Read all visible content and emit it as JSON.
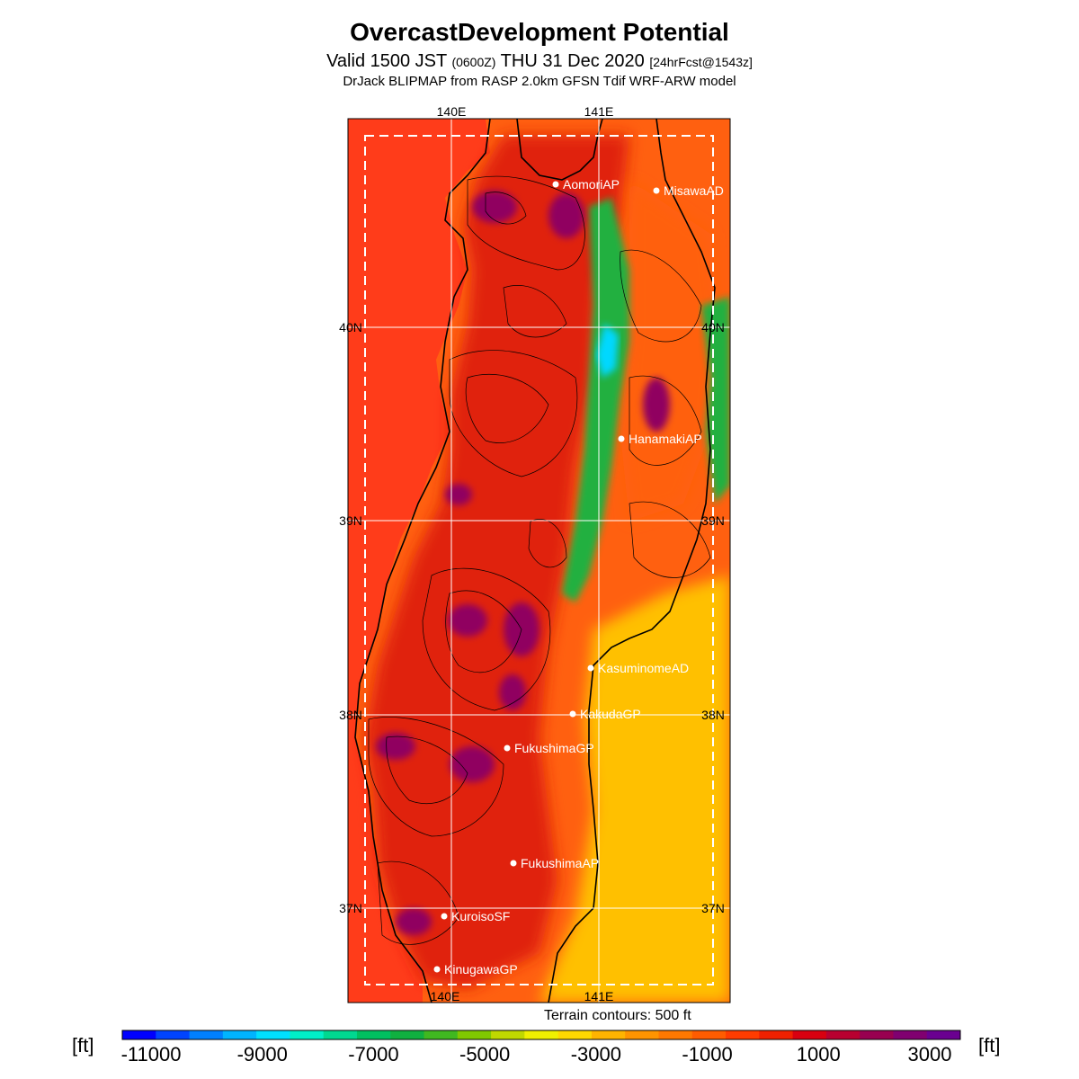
{
  "header": {
    "title": "OvercastDevelopment Potential",
    "valid_prefix": "Valid 1500 JST",
    "utc": "(0600Z)",
    "valid_date": "THU 31 Dec 2020",
    "forecast": "[24hrFcst@1543z]",
    "model": "DrJack BLIPMAP from RASP 2.0km GFSN Tdif WRF-ARW model"
  },
  "grid_labels": {
    "lon": [
      "140E",
      "141E"
    ],
    "lat": [
      "40N",
      "39N",
      "38N",
      "37N"
    ]
  },
  "places": [
    {
      "name": "AomoriAP"
    },
    {
      "name": "MisawaAD"
    },
    {
      "name": "HanamakiAP"
    },
    {
      "name": "KasuminomeAD"
    },
    {
      "name": "KakudaGP"
    },
    {
      "name": "FukushimaGP"
    },
    {
      "name": "FukushimaAP"
    },
    {
      "name": "KuroisoSF"
    },
    {
      "name": "KinugawaGP"
    }
  ],
  "legend": {
    "note": "Terrain contours: 500 ft",
    "unit": "[ft]",
    "tick_labels": [
      "-11000",
      "-9000",
      "-7000",
      "-5000",
      "-3000",
      "-1000",
      "1000",
      "3000"
    ],
    "colors": [
      "#0000ff",
      "#0044ff",
      "#0080ff",
      "#00b4ff",
      "#00e0ff",
      "#00f0c8",
      "#00d890",
      "#00c060",
      "#10b040",
      "#40b820",
      "#80c800",
      "#c0d800",
      "#f0f000",
      "#ffd800",
      "#ffb400",
      "#ff9400",
      "#ff7800",
      "#ff5c00",
      "#ff3c00",
      "#f02000",
      "#d80010",
      "#b80030",
      "#980050",
      "#800070",
      "#6a0090"
    ]
  },
  "colors": {
    "sea": "#ff3c1a",
    "land_low": "#ff6010",
    "land_red": "#e0200c",
    "east_plain": "#ffc000",
    "green": "#20b040",
    "cyan": "#00d8ff",
    "purple": "#900060"
  }
}
